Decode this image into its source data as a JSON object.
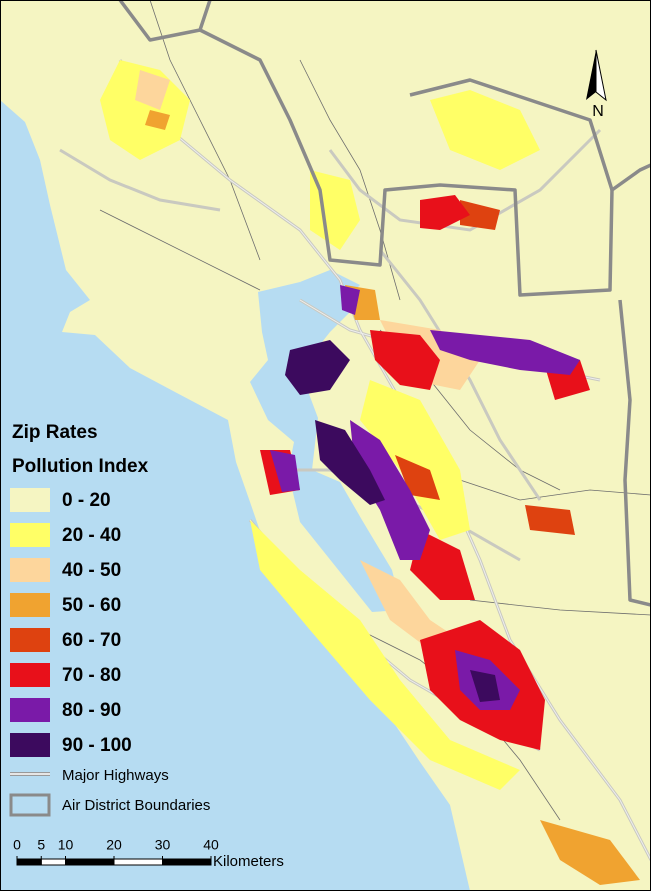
{
  "legend": {
    "title": "Zip Rates",
    "subtitle": "Pollution Index",
    "classes": [
      {
        "label": "0 - 20",
        "color": "#f5f5c2"
      },
      {
        "label": "20 - 40",
        "color": "#ffff66"
      },
      {
        "label": "40 - 50",
        "color": "#fdd69c"
      },
      {
        "label": "50 - 60",
        "color": "#f0a330"
      },
      {
        "label": "60 - 70",
        "color": "#de4210"
      },
      {
        "label": "70 - 80",
        "color": "#e8101a"
      },
      {
        "label": "80 - 90",
        "color": "#7a1aa8"
      },
      {
        "label": "90 - 100",
        "color": "#3c0a5e"
      }
    ],
    "highways": "Major Highways",
    "boundaries": "Air District Boundaries"
  },
  "scale_bar": {
    "ticks": [
      0,
      5,
      10,
      20,
      30,
      40
    ],
    "unit": "Kilometers"
  },
  "north_arrow": "N"
}
